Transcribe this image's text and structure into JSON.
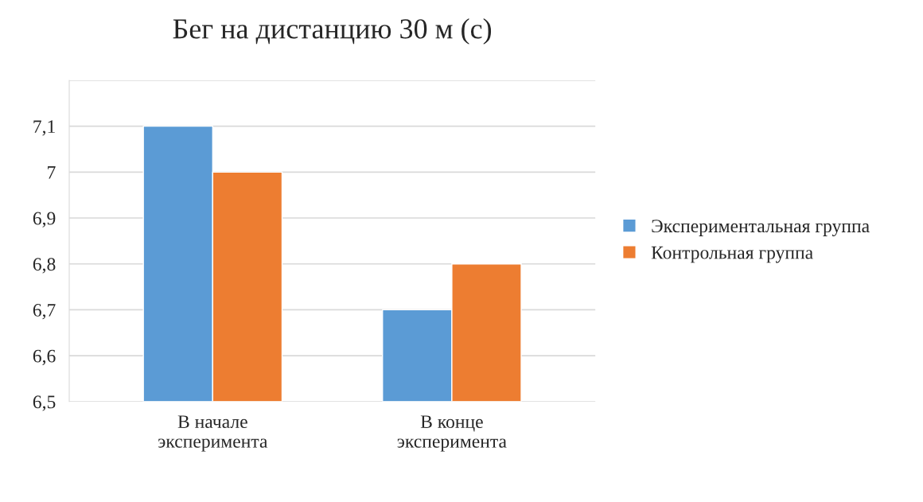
{
  "chart_data": {
    "type": "bar",
    "title": "Бег на дистанцию 30 м (с)",
    "categories": [
      "В начале\nэксперимента",
      "В конце\nэксперимента"
    ],
    "series": [
      {
        "name": "Экспериментальная группа",
        "color": "#5b9bd5",
        "values": [
          7.1,
          6.7
        ]
      },
      {
        "name": "Контрольная группа",
        "color": "#ed7d31",
        "values": [
          7.0,
          6.8
        ]
      }
    ],
    "ylim": [
      6.5,
      7.2
    ],
    "yticks": [
      {
        "value": 6.5,
        "label": "6,5"
      },
      {
        "value": 6.6,
        "label": "6,6"
      },
      {
        "value": 6.7,
        "label": "6,7"
      },
      {
        "value": 6.8,
        "label": "6,8"
      },
      {
        "value": 6.9,
        "label": "6,9"
      },
      7,
      {
        "value": 7.1,
        "label": "7,1"
      },
      {
        "value": 7.2,
        "label": null
      }
    ],
    "grid": "y",
    "legend": "right"
  }
}
